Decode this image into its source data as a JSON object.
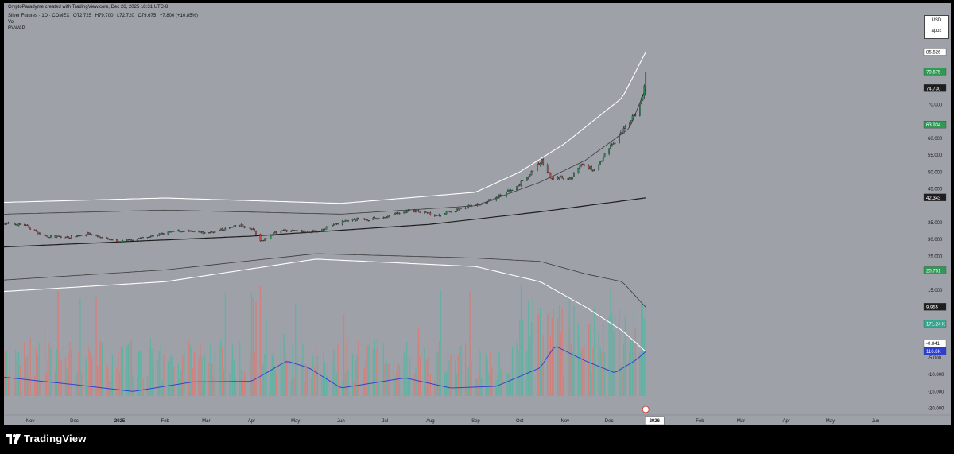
{
  "header": {
    "text": "CryptoParadyme created with TradingView.com, Dec 26, 2025 18:31 UTC-8"
  },
  "legend": {
    "symbol": "Silver Futures · 1D · COMEX",
    "open": "O72.725",
    "high": "H79.700",
    "low": "L72.720",
    "close": "C79.675",
    "change": "+7.800 (+10.85%)",
    "vol_label": "Vol",
    "vwap_label": "RVWAP"
  },
  "scale_box": {
    "currency": "USD",
    "mode": "apoz"
  },
  "footer": {
    "brand": "TradingView"
  },
  "colors": {
    "background": "#9ea1a8",
    "up": "#2e8b57",
    "down": "#c24a4a",
    "vol_up": "#5fb3a3",
    "vol_down": "#d4807a",
    "band_outer": "#ffffff",
    "band_inner": "#3b3b3b",
    "center": "#1e1e1e",
    "vol_ma": "#3344cc",
    "price_label_green": "#2e9a54",
    "price_label_dark": "#1e1e1e"
  },
  "chart_data": {
    "type": "candlestick",
    "x_start": "2024-10-14",
    "x_end": "2026-06-30",
    "ylim": [
      -22000,
      100000
    ],
    "y_ticks": [
      {
        "value": 95000,
        "label": "95.000"
      },
      {
        "value": 90000,
        "label": "90.000"
      },
      {
        "value": 80000,
        "label": "80.000"
      },
      {
        "value": 70000,
        "label": "70.000"
      },
      {
        "value": 60000,
        "label": "60.000"
      },
      {
        "value": 55000,
        "label": "55.000"
      },
      {
        "value": 50000,
        "label": "50.000"
      },
      {
        "value": 45000,
        "label": "45.000"
      },
      {
        "value": 35000,
        "label": "35.000"
      },
      {
        "value": 30000,
        "label": "30.000"
      },
      {
        "value": 25000,
        "label": "25.000"
      },
      {
        "value": 15000,
        "label": "15.000"
      },
      {
        "value": -5000,
        "label": "-5.000"
      },
      {
        "value": -10000,
        "label": "-10.000"
      },
      {
        "value": -15000,
        "label": "-15.000"
      },
      {
        "value": -20000,
        "label": "-20.000"
      }
    ],
    "x_ticks": [
      {
        "date": "2024-11-01",
        "label": "Nov"
      },
      {
        "date": "2024-12-01",
        "label": "Dec"
      },
      {
        "date": "2025-01-01",
        "label": "2025",
        "bold": true
      },
      {
        "date": "2025-02-01",
        "label": "Feb"
      },
      {
        "date": "2025-03-01",
        "label": "Mar"
      },
      {
        "date": "2025-04-01",
        "label": "Apr"
      },
      {
        "date": "2025-05-01",
        "label": "May"
      },
      {
        "date": "2025-06-01",
        "label": "Jun"
      },
      {
        "date": "2025-07-01",
        "label": "Jul"
      },
      {
        "date": "2025-08-01",
        "label": "Aug"
      },
      {
        "date": "2025-09-01",
        "label": "Sep"
      },
      {
        "date": "2025-10-01",
        "label": "Oct"
      },
      {
        "date": "2025-11-01",
        "label": "Nov"
      },
      {
        "date": "2025-12-01",
        "label": "Dec"
      },
      {
        "date": "2026-01-01",
        "label": "2026",
        "bold": true,
        "highlight": true
      },
      {
        "date": "2026-02-01",
        "label": "Feb"
      },
      {
        "date": "2026-03-01",
        "label": "Mar"
      },
      {
        "date": "2026-04-01",
        "label": "Apr"
      },
      {
        "date": "2026-05-01",
        "label": "May"
      },
      {
        "date": "2026-06-01",
        "label": "Jun"
      }
    ],
    "price_labels": [
      {
        "value": 85526,
        "label": "85.526",
        "style": "white"
      },
      {
        "value": 79675,
        "label": "79.675",
        "style": "green"
      },
      {
        "value": 74730,
        "label": "74.730",
        "style": "dark"
      },
      {
        "value": 63934,
        "label": "63.934",
        "style": "green"
      },
      {
        "value": 42343,
        "label": "42.343",
        "style": "dark"
      },
      {
        "value": 20751,
        "label": "20.751",
        "style": "green"
      },
      {
        "value": 9955,
        "label": "9.955",
        "style": "dark"
      },
      {
        "value": 5000,
        "label": "171.24 K",
        "style": "teal"
      },
      {
        "value": -841,
        "label": "-0.841",
        "style": "white"
      },
      {
        "value": -3200,
        "label": "116.8K",
        "style": "blue"
      }
    ],
    "close_anchors": [
      [
        "2024-10-14",
        34.8
      ],
      [
        "2024-10-28",
        34.3
      ],
      [
        "2024-11-10",
        31.0
      ],
      [
        "2024-11-28",
        30.6
      ],
      [
        "2024-12-10",
        31.8
      ],
      [
        "2024-12-31",
        29.2
      ],
      [
        "2025-01-20",
        30.8
      ],
      [
        "2025-02-10",
        32.6
      ],
      [
        "2025-03-01",
        31.9
      ],
      [
        "2025-03-25",
        34.2
      ],
      [
        "2025-04-03",
        32.5
      ],
      [
        "2025-04-07",
        29.3
      ],
      [
        "2025-04-20",
        32.8
      ],
      [
        "2025-05-15",
        32.3
      ],
      [
        "2025-06-05",
        35.8
      ],
      [
        "2025-06-25",
        36.1
      ],
      [
        "2025-07-20",
        38.7
      ],
      [
        "2025-08-05",
        37.2
      ],
      [
        "2025-08-31",
        40.1
      ],
      [
        "2025-09-20",
        43.2
      ],
      [
        "2025-10-05",
        47.8
      ],
      [
        "2025-10-16",
        53.5
      ],
      [
        "2025-10-22",
        48.4
      ],
      [
        "2025-11-05",
        48.0
      ],
      [
        "2025-11-13",
        52.6
      ],
      [
        "2025-11-21",
        50.2
      ],
      [
        "2025-12-01",
        57.0
      ],
      [
        "2025-12-12",
        63.0
      ],
      [
        "2025-12-19",
        67.3
      ],
      [
        "2025-12-24",
        72.7
      ],
      [
        "2025-12-26",
        79.675
      ]
    ],
    "series": [
      {
        "name": "RVWAP center",
        "points": [
          [
            "2024-10-14",
            27.8
          ],
          [
            "2025-04-01",
            31.0
          ],
          [
            "2025-08-01",
            34.5
          ],
          [
            "2025-10-15",
            38.2
          ],
          [
            "2025-12-26",
            42.343
          ]
        ]
      },
      {
        "name": "RVWAP upper 1",
        "points": [
          [
            "2024-10-14",
            37.5
          ],
          [
            "2025-02-01",
            38.7
          ],
          [
            "2025-06-01",
            37.5
          ],
          [
            "2025-09-01",
            40.0
          ],
          [
            "2025-10-15",
            47.0
          ],
          [
            "2025-11-15",
            53.5
          ],
          [
            "2025-12-15",
            63.0
          ],
          [
            "2025-12-26",
            74.73
          ]
        ]
      },
      {
        "name": "RVWAP upper 2",
        "points": [
          [
            "2024-10-14",
            41.0
          ],
          [
            "2025-02-01",
            42.3
          ],
          [
            "2025-06-01",
            40.7
          ],
          [
            "2025-09-01",
            44.0
          ],
          [
            "2025-10-01",
            50.0
          ],
          [
            "2025-11-01",
            58.5
          ],
          [
            "2025-12-10",
            72.0
          ],
          [
            "2025-12-26",
            85.526
          ]
        ]
      },
      {
        "name": "RVWAP lower 1",
        "points": [
          [
            "2024-10-14",
            18.0
          ],
          [
            "2025-02-01",
            21.0
          ],
          [
            "2025-05-15",
            25.8
          ],
          [
            "2025-09-01",
            24.5
          ],
          [
            "2025-10-15",
            23.5
          ],
          [
            "2025-11-15",
            19.8
          ],
          [
            "2025-12-10",
            17.5
          ],
          [
            "2025-12-26",
            9.955
          ]
        ]
      },
      {
        "name": "RVWAP lower 2",
        "points": [
          [
            "2024-10-14",
            14.6
          ],
          [
            "2025-02-01",
            17.5
          ],
          [
            "2025-05-15",
            24.2
          ],
          [
            "2025-09-01",
            22.0
          ],
          [
            "2025-10-15",
            17.5
          ],
          [
            "2025-11-15",
            10.0
          ],
          [
            "2025-12-10",
            3.0
          ],
          [
            "2025-12-26",
            -3.2
          ]
        ]
      },
      {
        "name": "Volume MA",
        "points": [
          [
            "2024-10-14",
            -10.8
          ],
          [
            "2024-12-01",
            -13.0
          ],
          [
            "2025-01-10",
            -15.0
          ],
          [
            "2025-02-20",
            -12.2
          ],
          [
            "2025-04-01",
            -12.0
          ],
          [
            "2025-04-25",
            -6.0
          ],
          [
            "2025-05-10",
            -8.0
          ],
          [
            "2025-06-01",
            -14.0
          ],
          [
            "2025-07-15",
            -11.0
          ],
          [
            "2025-08-15",
            -14.0
          ],
          [
            "2025-09-15",
            -13.5
          ],
          [
            "2025-10-15",
            -8.0
          ],
          [
            "2025-10-25",
            -1.5
          ],
          [
            "2025-11-15",
            -6.0
          ],
          [
            "2025-12-05",
            -9.5
          ],
          [
            "2025-12-20",
            -5.5
          ],
          [
            "2025-12-26",
            -3.2
          ]
        ]
      }
    ]
  }
}
